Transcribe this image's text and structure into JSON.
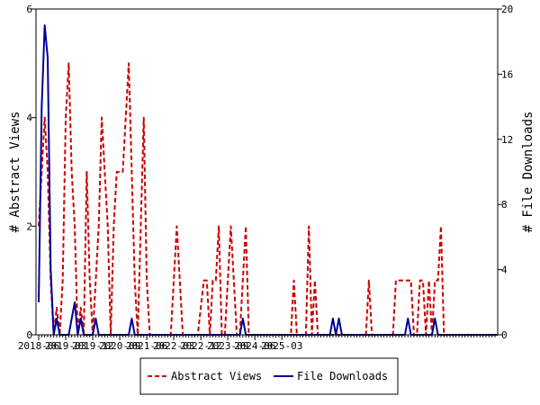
{
  "chart_data": {
    "type": "line",
    "title": "",
    "ylabel": "# Abstract Views",
    "y2label": "# File Downloads",
    "ylim": [
      0,
      6
    ],
    "y2lim": [
      0,
      20
    ],
    "yticks": [
      "0",
      "2",
      "4",
      "6"
    ],
    "y2ticks": [
      "0",
      "4",
      "8",
      "12",
      "16",
      "20"
    ],
    "xticks": [
      "2018-06",
      "2019-03",
      "2019-12",
      "2020-09",
      "2021-06",
      "2022-03",
      "2022-12",
      "2023-09",
      "2024-06",
      "2025-03"
    ],
    "legend_position": "bottom",
    "series": [
      {
        "name": "Abstract Views",
        "axis": "left",
        "color": "#cc0000",
        "style": "dashed",
        "values": [
          2,
          3,
          4,
          3,
          1,
          0,
          0.5,
          0,
          1,
          4,
          5,
          3,
          2,
          0,
          0.5,
          0,
          3,
          1,
          0,
          1,
          2,
          4,
          3,
          2,
          0,
          2,
          3,
          3,
          3,
          4,
          5,
          3,
          1,
          0,
          2,
          4,
          1,
          0,
          0,
          0,
          0,
          0,
          0,
          0,
          0,
          1,
          2,
          1,
          0,
          0,
          0,
          0,
          0,
          0,
          0.5,
          1,
          1,
          0,
          1,
          1,
          2,
          0,
          0,
          1,
          2,
          1,
          0,
          0,
          1,
          2,
          0,
          0,
          0,
          0,
          0,
          0,
          0,
          0,
          0,
          0,
          0,
          0,
          0,
          0,
          0,
          1,
          0,
          0,
          0,
          0,
          2,
          0,
          1,
          0,
          0,
          0,
          0,
          0,
          0,
          0,
          0,
          0,
          0,
          0,
          0,
          0,
          0,
          0,
          0,
          0,
          1,
          0,
          0,
          0,
          0,
          0,
          0,
          0,
          0,
          1,
          1,
          1,
          1,
          1,
          1,
          0,
          0,
          1,
          1,
          0,
          1,
          0,
          1,
          1,
          2,
          0,
          0,
          0,
          0,
          0,
          0,
          0,
          0,
          0,
          0,
          0,
          0,
          0,
          0,
          0,
          0,
          0,
          0
        ]
      },
      {
        "name": "File Downloads",
        "axis": "right",
        "color": "#000099",
        "style": "solid",
        "values": [
          2,
          14,
          19,
          17,
          4,
          0,
          1,
          0,
          0,
          0,
          0,
          1,
          2,
          0,
          1,
          0,
          0,
          0,
          0,
          1,
          0,
          0,
          0,
          0,
          0,
          0,
          0,
          0,
          0,
          0,
          0,
          1,
          0,
          0,
          0,
          0,
          0,
          0,
          0,
          0,
          0,
          0,
          0,
          0,
          0,
          0,
          0,
          0,
          0,
          0,
          0,
          0,
          0,
          0,
          0,
          0,
          0,
          0,
          0,
          0,
          0,
          0,
          0,
          0,
          0,
          0,
          0,
          0,
          1,
          0,
          0,
          0,
          0,
          0,
          0,
          0,
          0,
          0,
          0,
          0,
          0,
          0,
          0,
          0,
          0,
          0,
          0,
          0,
          0,
          0,
          0,
          0,
          0,
          0,
          0,
          0,
          0,
          0,
          1,
          0,
          1,
          0,
          0,
          0,
          0,
          0,
          0,
          0,
          0,
          0,
          0,
          0,
          0,
          0,
          0,
          0,
          0,
          0,
          0,
          0,
          0,
          0,
          0,
          1,
          0,
          0,
          0,
          0,
          0,
          0,
          0,
          0,
          1,
          0,
          0,
          0,
          0,
          0,
          0,
          0,
          0,
          0,
          0,
          0,
          0,
          0,
          0,
          0,
          0,
          0,
          0,
          0,
          0,
          0
        ]
      }
    ]
  }
}
